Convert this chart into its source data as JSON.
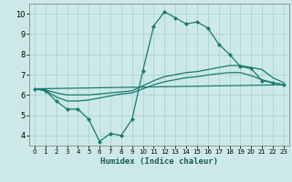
{
  "title": "",
  "xlabel": "Humidex (Indice chaleur)",
  "bg_color": "#cce9e8",
  "grid_color": "#aad4d2",
  "line_color": "#1a7a6e",
  "x_ticks": [
    0,
    1,
    2,
    3,
    4,
    5,
    6,
    7,
    8,
    9,
    10,
    11,
    12,
    13,
    14,
    15,
    16,
    17,
    18,
    19,
    20,
    21,
    22,
    23
  ],
  "y_ticks": [
    4,
    5,
    6,
    7,
    8,
    9,
    10
  ],
  "ylim": [
    3.5,
    10.5
  ],
  "xlim": [
    -0.5,
    23.5
  ],
  "series1_x": [
    0,
    1,
    2,
    3,
    4,
    5,
    6,
    7,
    8,
    9,
    10,
    11,
    12,
    13,
    14,
    15,
    16,
    17,
    18,
    19,
    20,
    21,
    22,
    23
  ],
  "series1_y": [
    6.3,
    6.2,
    5.7,
    5.3,
    5.3,
    4.8,
    3.7,
    4.1,
    4.0,
    4.8,
    7.2,
    9.4,
    10.1,
    9.8,
    9.5,
    9.6,
    9.3,
    8.5,
    8.0,
    7.4,
    7.3,
    6.7,
    6.6,
    6.5
  ],
  "series2_x": [
    0,
    1,
    2,
    3,
    4,
    5,
    6,
    7,
    8,
    9,
    10,
    11,
    12,
    13,
    14,
    15,
    16,
    17,
    18,
    19,
    20,
    21,
    22,
    23
  ],
  "series2_y": [
    6.3,
    6.25,
    6.1,
    6.0,
    6.0,
    6.0,
    6.05,
    6.1,
    6.15,
    6.2,
    6.45,
    6.7,
    6.9,
    7.0,
    7.1,
    7.15,
    7.25,
    7.35,
    7.45,
    7.45,
    7.35,
    7.25,
    6.85,
    6.6
  ],
  "series3_x": [
    0,
    1,
    2,
    3,
    4,
    5,
    6,
    7,
    8,
    9,
    10,
    11,
    12,
    13,
    14,
    15,
    16,
    17,
    18,
    19,
    20,
    21,
    22,
    23
  ],
  "series3_y": [
    6.3,
    6.22,
    5.9,
    5.7,
    5.7,
    5.75,
    5.85,
    5.95,
    6.05,
    6.1,
    6.3,
    6.5,
    6.65,
    6.75,
    6.85,
    6.9,
    6.98,
    7.05,
    7.1,
    7.1,
    6.95,
    6.75,
    6.6,
    6.5
  ],
  "series4_x": [
    0,
    23
  ],
  "series4_y": [
    6.3,
    6.5
  ],
  "xlabel_fontsize": 6.5,
  "tick_fontsize_x": 5,
  "tick_fontsize_y": 6
}
